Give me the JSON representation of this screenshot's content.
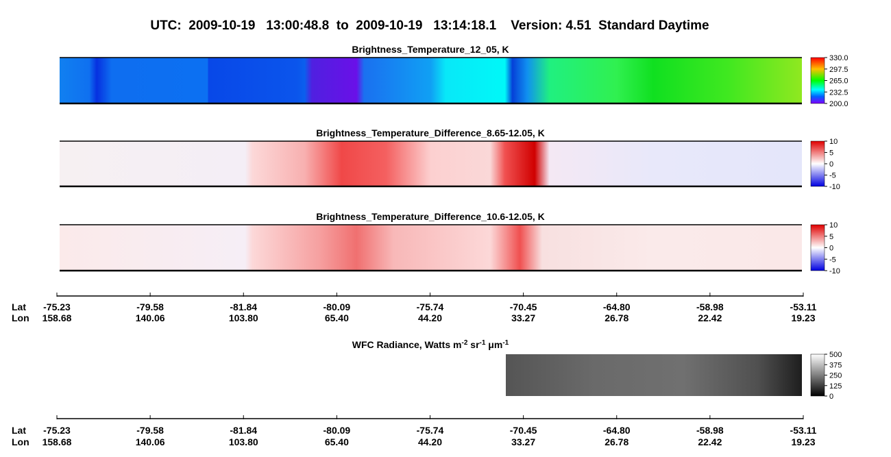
{
  "header": {
    "title": "UTC:  2009-10-19   13:00:48.8  to  2009-10-19   13:14:18.1    Version: 4.51  Standard Daytime"
  },
  "panels": [
    {
      "title": "Brightness_Temperature_12_05, K",
      "colorbar_labels": [
        "330.0",
        "297.5",
        "265.0",
        "232.5",
        "200.0"
      ]
    },
    {
      "title": "Brightness_Temperature_Difference_8.65-12.05, K",
      "colorbar_labels": [
        "10",
        "5",
        "0",
        "-5",
        "-10"
      ]
    },
    {
      "title": "Brightness_Temperature_Difference_10.6-12.05, K",
      "colorbar_labels": [
        "10",
        "5",
        "0",
        "-5",
        "-10"
      ]
    }
  ],
  "wfc": {
    "title_parts": [
      "WFC Radiance, Watts m",
      "-2",
      " sr",
      "-1",
      " μm",
      "-1"
    ],
    "colorbar_labels": [
      "500",
      "375",
      "250",
      "125",
      "0"
    ]
  },
  "axis": {
    "lat_label": "Lat",
    "lon_label": "Lon",
    "lat": [
      "-75.23",
      "-79.58",
      "-81.84",
      "-80.09",
      "-75.74",
      "-70.45",
      "-64.80",
      "-58.98",
      "-53.11"
    ],
    "lon": [
      "158.68",
      "140.06",
      "103.80",
      "65.40",
      "44.20",
      "33.27",
      "26.78",
      "22.42",
      "19.23"
    ]
  }
}
